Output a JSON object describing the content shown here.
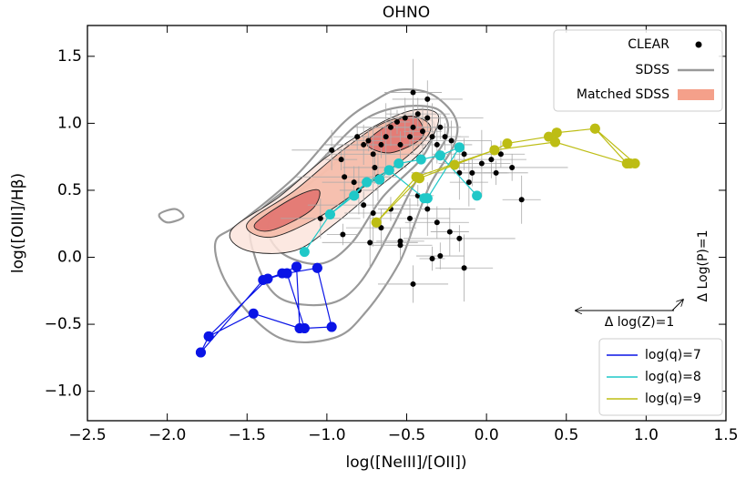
{
  "chart_data": {
    "type": "scatter",
    "title": "OHNO",
    "x_label": "log([NeIII]/[OII])",
    "y_label": "log([OIII]/Hβ)",
    "xlim": [
      -2.5,
      1.5
    ],
    "ylim": [
      -1.22,
      1.73
    ],
    "xticks": [
      {
        "value": -2.5,
        "label": "−2.5"
      },
      {
        "value": -2.0,
        "label": "−2.0"
      },
      {
        "value": -1.5,
        "label": "−1.5"
      },
      {
        "value": -1.0,
        "label": "−1.0"
      },
      {
        "value": -0.5,
        "label": "−0.5"
      },
      {
        "value": 0,
        "label": "0.0"
      },
      0.5,
      {
        "value": 1,
        "label": "1.0"
      },
      1.5
    ],
    "yticks": [
      {
        "value": -1.0,
        "label": "−1.0"
      },
      {
        "value": -0.5,
        "label": "−0.5"
      },
      {
        "value": 0,
        "label": "0.0"
      },
      0.5,
      {
        "value": 1,
        "label": "1.0"
      },
      1.5
    ],
    "clear": {
      "name": "CLEAR",
      "color": "#000000",
      "x": [
        -0.81,
        -0.77,
        -0.74,
        -0.71,
        -0.7,
        -0.68,
        -0.66,
        -0.63,
        -0.6,
        -0.56,
        -0.54,
        -0.51,
        -0.48,
        -0.46,
        -0.43,
        -0.4,
        -0.37,
        -0.34,
        -0.31,
        -0.29,
        -0.26,
        -0.22,
        -0.2,
        -0.17,
        -0.14,
        -0.11,
        -0.09,
        -0.03,
        0.03,
        0.06,
        0.09,
        -0.97,
        -0.91,
        -0.89,
        -0.83,
        -0.8,
        -0.77,
        -0.71,
        -0.66,
        -0.6,
        -0.54,
        -0.48,
        -0.43,
        -0.37,
        -0.31,
        -0.23,
        -0.17,
        -0.14,
        -0.46,
        -0.34,
        -0.29,
        -1.04,
        -0.9,
        -0.73,
        -0.54,
        0.22,
        0.16,
        -0.46,
        -0.37
      ],
      "y": [
        0.9,
        0.84,
        0.87,
        0.77,
        0.67,
        0.6,
        0.84,
        0.9,
        0.97,
        1.01,
        0.84,
        1.04,
        0.9,
        0.97,
        1.07,
        0.94,
        1.04,
        0.9,
        0.84,
        0.97,
        0.9,
        0.87,
        0.7,
        0.63,
        0.77,
        0.56,
        0.63,
        0.7,
        0.73,
        0.63,
        0.77,
        0.8,
        0.73,
        0.6,
        0.56,
        0.5,
        0.39,
        0.33,
        0.22,
        0.36,
        0.12,
        0.29,
        0.46,
        0.36,
        0.26,
        0.19,
        0.14,
        -0.08,
        -0.2,
        -0.01,
        0.01,
        0.29,
        0.17,
        0.11,
        0.09,
        0.43,
        0.67,
        1.23,
        1.18
      ],
      "xerr": [
        0.15,
        0.25,
        0.1,
        0.3,
        0.2,
        0.12,
        0.35,
        0.18,
        0.22,
        0.08,
        0.15,
        0.25,
        0.1,
        0.3,
        0.2,
        0.12,
        0.35,
        0.18,
        0.22,
        0.08,
        0.15,
        0.25,
        0.1,
        0.3,
        0.2,
        0.12,
        0.35,
        0.18,
        0.22,
        0.08,
        0.15,
        0.25,
        0.1,
        0.3,
        0.2,
        0.12,
        0.35,
        0.18,
        0.22,
        0.08,
        0.15,
        0.25,
        0.1,
        0.3,
        0.2,
        0.12,
        0.35,
        0.18,
        0.22,
        0.08,
        0.15,
        0.25,
        0.1,
        0.3,
        0.2,
        0.12,
        0.35,
        0.18,
        0.22
      ],
      "yerr": [
        0.1,
        0.15,
        0.08,
        0.2,
        0.12,
        0.18,
        0.1,
        0.25,
        0.14,
        0.09,
        0.1,
        0.15,
        0.08,
        0.2,
        0.12,
        0.18,
        0.1,
        0.25,
        0.14,
        0.09,
        0.1,
        0.15,
        0.08,
        0.2,
        0.12,
        0.18,
        0.1,
        0.25,
        0.14,
        0.09,
        0.1,
        0.15,
        0.08,
        0.2,
        0.12,
        0.18,
        0.1,
        0.25,
        0.14,
        0.09,
        0.1,
        0.15,
        0.08,
        0.2,
        0.12,
        0.18,
        0.1,
        0.25,
        0.14,
        0.09,
        0.1,
        0.15,
        0.08,
        0.2,
        0.12,
        0.18,
        0.1,
        0.25,
        0.14
      ]
    },
    "sdss": {
      "name": "SDSS",
      "color": "#999999",
      "contours": [
        {
          "x": [
            -1.55,
            -1.2,
            -0.9,
            -0.7,
            -0.55,
            -0.35,
            -0.2,
            -0.2,
            -0.35,
            -0.45,
            -0.55,
            -0.75,
            -0.95,
            -1.3,
            -1.6,
            -1.7
          ],
          "y": [
            0.25,
            0.6,
            1.0,
            1.17,
            1.25,
            1.22,
            1.05,
            0.85,
            0.55,
            0.25,
            -0.05,
            -0.4,
            -0.6,
            -0.6,
            -0.25,
            0.1
          ]
        },
        {
          "x": [
            -1.45,
            -1.1,
            -0.8,
            -0.55,
            -0.3,
            -0.25,
            -0.45,
            -0.6,
            -0.8,
            -1.0,
            -1.3,
            -1.45
          ],
          "y": [
            0.3,
            0.65,
            1.0,
            1.12,
            1.1,
            0.9,
            0.55,
            0.2,
            -0.2,
            -0.35,
            -0.3,
            0.0
          ]
        },
        {
          "x": [
            -1.35,
            -1.0,
            -0.7,
            -0.5,
            -0.33,
            -0.4,
            -0.65,
            -0.85,
            -1.05,
            -1.3
          ],
          "y": [
            0.3,
            0.65,
            0.95,
            1.05,
            1.0,
            0.75,
            0.45,
            0.1,
            -0.05,
            0.05
          ]
        },
        {
          "x": [
            -2.05,
            -1.95,
            -1.9,
            -2.0
          ],
          "y": [
            0.32,
            0.36,
            0.3,
            0.26
          ]
        }
      ]
    },
    "matched_sdss": {
      "name": "Matched SDSS",
      "color": "#f4a08a",
      "levels": [
        {
          "color": "#fbe4dc",
          "x": [
            -1.6,
            -1.3,
            -1.0,
            -0.7,
            -0.45,
            -0.3,
            -0.4,
            -0.7,
            -0.95,
            -1.2,
            -1.5
          ],
          "y": [
            0.2,
            0.45,
            0.75,
            0.98,
            1.1,
            1.05,
            0.8,
            0.5,
            0.25,
            0.05,
            0.05
          ]
        },
        {
          "color": "#f5b8a6",
          "x": [
            -1.5,
            -1.2,
            -0.9,
            -0.65,
            -0.45,
            -0.35,
            -0.5,
            -0.8,
            -1.05,
            -1.35
          ],
          "y": [
            0.25,
            0.5,
            0.8,
            1.0,
            1.05,
            0.95,
            0.75,
            0.5,
            0.3,
            0.15
          ]
        },
        {
          "color": "#e0706c",
          "x": [
            -1.45,
            -1.2,
            -1.05,
            -1.1,
            -1.35
          ],
          "y": [
            0.25,
            0.45,
            0.5,
            0.35,
            0.2
          ]
        },
        {
          "color": "#e0706c",
          "x": [
            -0.75,
            -0.6,
            -0.45,
            -0.4,
            -0.6
          ],
          "y": [
            0.85,
            1.0,
            1.05,
            0.9,
            0.78
          ]
        }
      ]
    },
    "models": [
      {
        "name": "log(q)=7",
        "color": "#0a14e6",
        "x": [
          -1.79,
          -1.4,
          -1.28,
          -1.19,
          null,
          -1.74,
          -1.37,
          -1.25,
          -1.06,
          null,
          -1.79,
          -1.74,
          -1.46,
          -1.17,
          -1.14,
          -0.97,
          null,
          -1.19,
          -1.17,
          null,
          -1.25,
          -1.14,
          null,
          -1.06,
          -0.97
        ],
        "y": [
          -0.71,
          -0.17,
          -0.12,
          -0.07,
          null,
          -0.59,
          -0.16,
          -0.12,
          -0.08,
          null,
          -0.71,
          -0.59,
          -0.42,
          -0.53,
          -0.53,
          -0.52,
          null,
          -0.07,
          -0.53,
          null,
          -0.12,
          -0.53,
          null,
          -0.08,
          -0.52
        ]
      },
      {
        "name": "log(q)=8",
        "color": "#1fc8c8",
        "x": [
          -1.14,
          -0.98,
          -0.83,
          -0.75,
          -0.67,
          -0.61,
          -0.55,
          -0.41,
          -0.29,
          -0.17,
          null,
          -0.98,
          -0.75,
          -0.61,
          -0.39,
          -0.37,
          null,
          -0.29,
          -0.06,
          null,
          -0.17,
          -0.37
        ],
        "y": [
          0.04,
          0.32,
          0.46,
          0.56,
          0.58,
          0.65,
          0.7,
          0.73,
          0.76,
          0.82,
          null,
          0.32,
          0.56,
          0.65,
          0.44,
          0.44,
          null,
          0.76,
          0.46,
          null,
          0.82,
          0.44
        ]
      },
      {
        "name": "log(q)=9",
        "color": "#bdbd14",
        "x": [
          -0.69,
          -0.42,
          -0.2,
          0.05,
          0.13,
          0.39,
          0.44,
          0.68,
          0.93,
          null,
          -0.69,
          -0.44,
          0.05,
          0.43,
          0.88,
          0.9,
          null,
          0.44,
          0.43,
          null,
          0.68,
          0.88
        ],
        "y": [
          0.26,
          0.59,
          0.69,
          0.8,
          0.85,
          0.9,
          0.93,
          0.96,
          0.7,
          null,
          0.26,
          0.6,
          0.8,
          0.86,
          0.7,
          0.7,
          null,
          0.93,
          0.86,
          null,
          0.96,
          0.7
        ]
      }
    ],
    "annotations": [
      "Δ log(Z)=1",
      "Δ Log(P)=1"
    ]
  }
}
